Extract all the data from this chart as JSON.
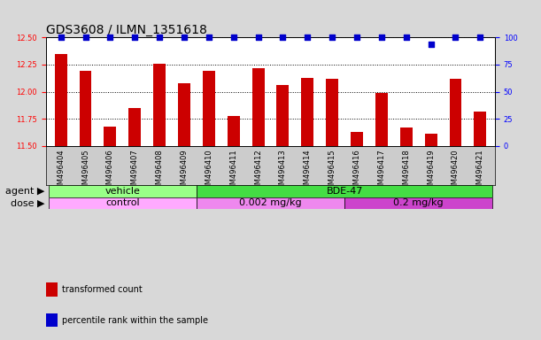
{
  "title": "GDS3608 / ILMN_1351618",
  "samples": [
    "GSM496404",
    "GSM496405",
    "GSM496406",
    "GSM496407",
    "GSM496408",
    "GSM496409",
    "GSM496410",
    "GSM496411",
    "GSM496412",
    "GSM496413",
    "GSM496414",
    "GSM496415",
    "GSM496416",
    "GSM496417",
    "GSM496418",
    "GSM496419",
    "GSM496420",
    "GSM496421"
  ],
  "bar_values": [
    12.35,
    12.19,
    11.68,
    11.85,
    12.26,
    12.08,
    12.19,
    11.78,
    12.22,
    12.06,
    12.13,
    12.12,
    11.63,
    11.99,
    11.67,
    11.61,
    12.12,
    11.82
  ],
  "percentile_values": [
    100,
    100,
    100,
    100,
    100,
    100,
    100,
    100,
    100,
    100,
    100,
    100,
    100,
    100,
    100,
    94,
    100,
    100
  ],
  "bar_color": "#cc0000",
  "percentile_color": "#0000cc",
  "ylim_left": [
    11.5,
    12.5
  ],
  "ylim_right": [
    0,
    100
  ],
  "yticks_left": [
    11.5,
    11.75,
    12.0,
    12.25,
    12.5
  ],
  "yticks_right": [
    0,
    25,
    50,
    75,
    100
  ],
  "agent_groups": [
    {
      "label": "vehicle",
      "start": 0,
      "end": 5,
      "color": "#99ff88"
    },
    {
      "label": "BDE-47",
      "start": 6,
      "end": 17,
      "color": "#44dd44"
    }
  ],
  "dose_groups": [
    {
      "label": "control",
      "start": 0,
      "end": 5,
      "color": "#ffaaff"
    },
    {
      "label": "0.002 mg/kg",
      "start": 6,
      "end": 11,
      "color": "#ee88ee"
    },
    {
      "label": "0.2 mg/kg",
      "start": 12,
      "end": 17,
      "color": "#cc44cc"
    }
  ],
  "agent_label": "agent",
  "dose_label": "dose",
  "legend_items": [
    {
      "label": "transformed count",
      "color": "#cc0000"
    },
    {
      "label": "percentile rank within the sample",
      "color": "#0000cc"
    }
  ],
  "background_color": "#d8d8d8",
  "plot_bg_color": "#ffffff",
  "xlabel_bg_color": "#cccccc",
  "title_fontsize": 10,
  "tick_fontsize": 6,
  "label_fontsize": 8,
  "annotation_fontsize": 8
}
